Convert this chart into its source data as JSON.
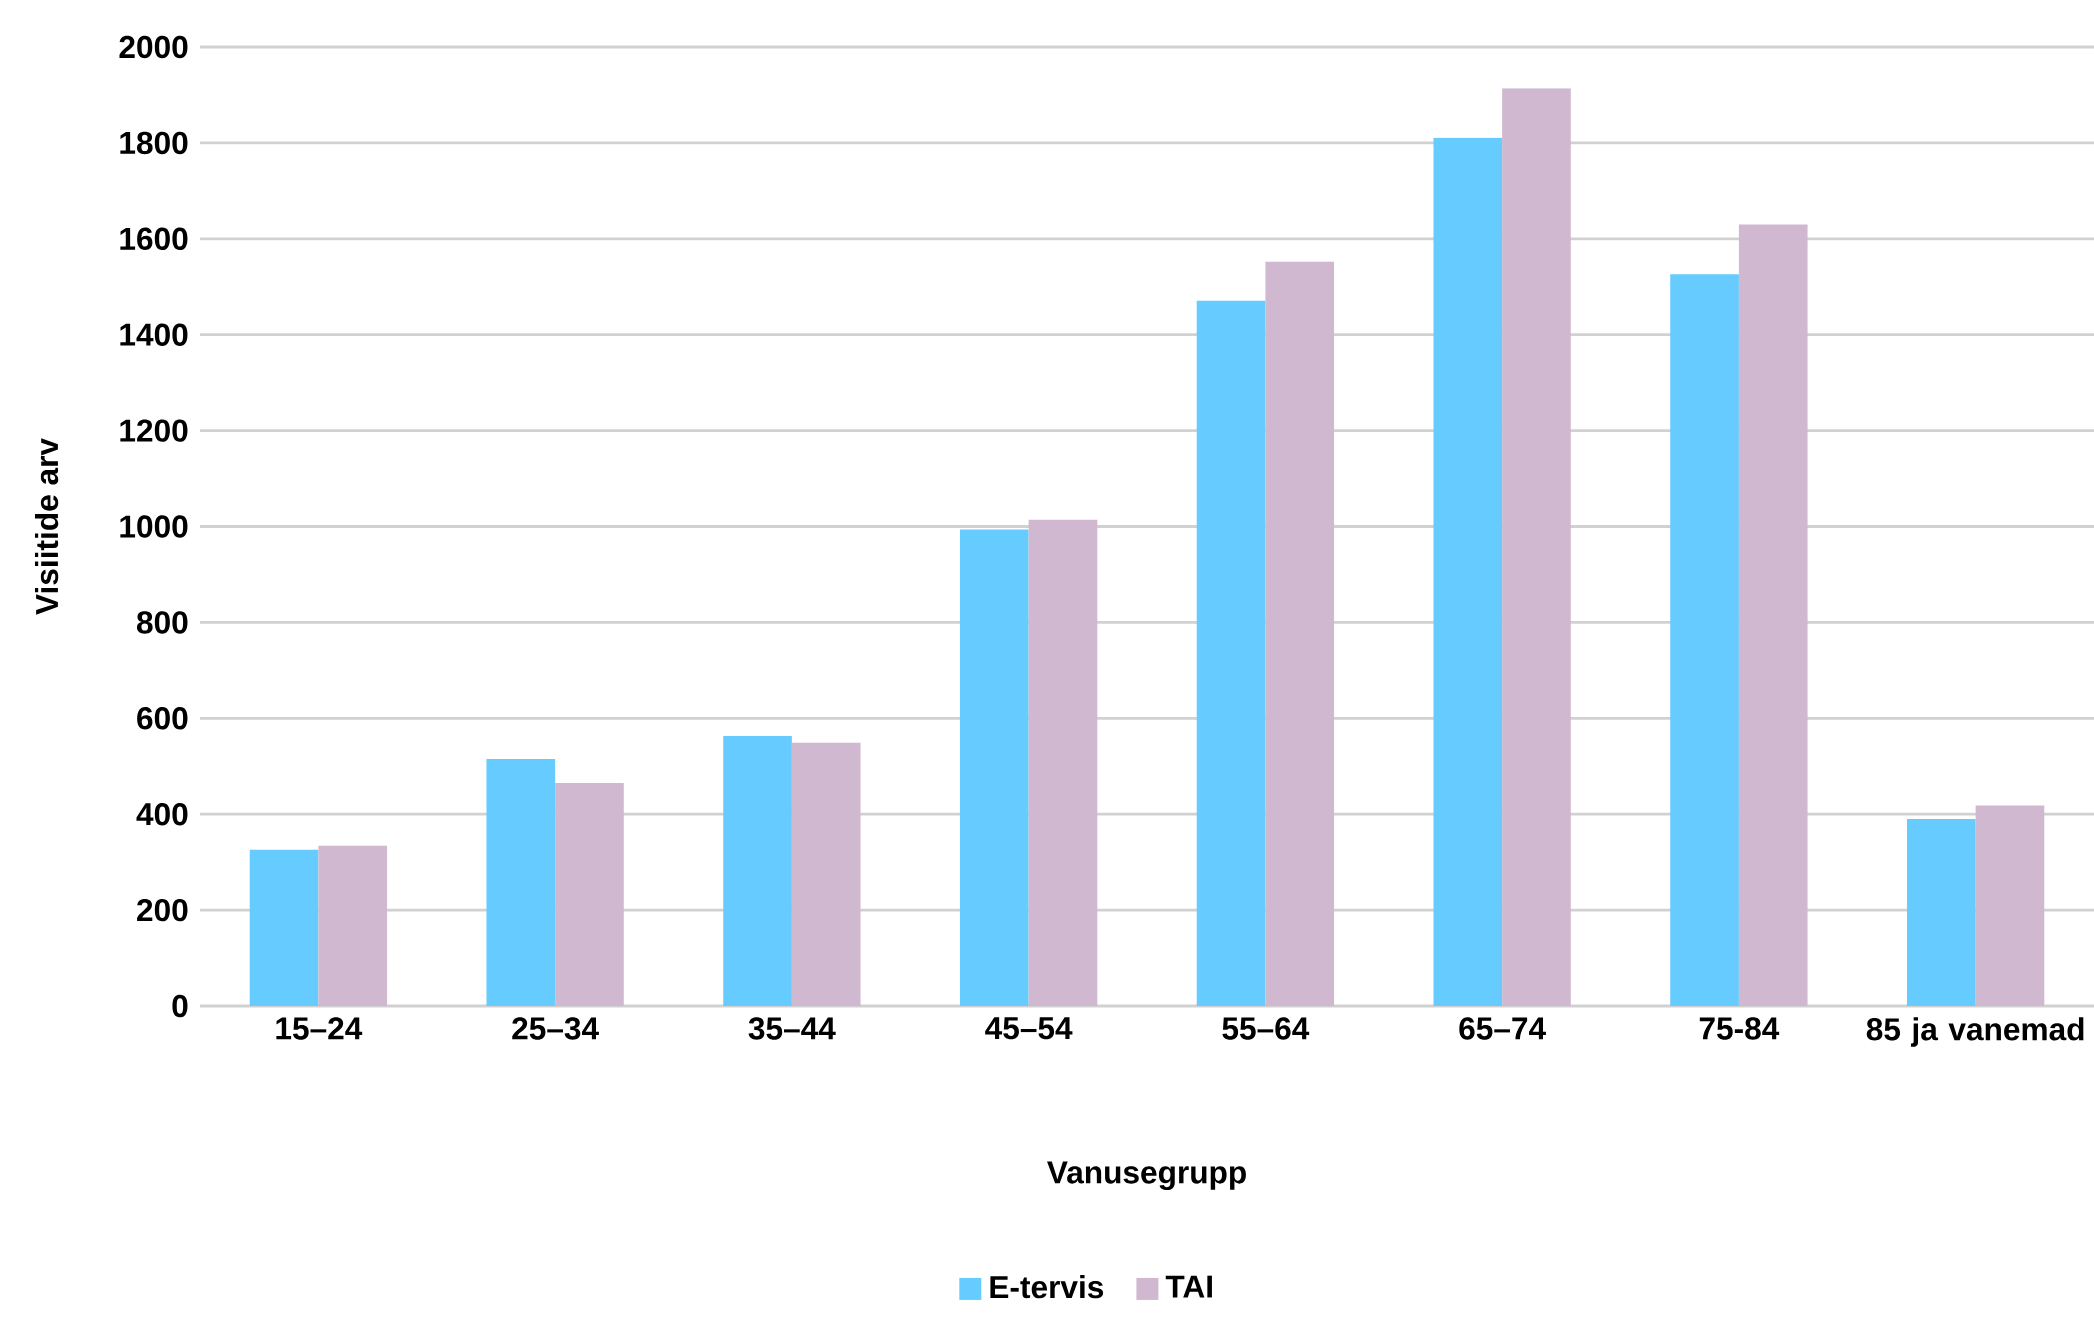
{
  "chart_data": {
    "type": "bar",
    "xlabel": "Vanusegrupp",
    "ylabel": "Visiitide arv",
    "categories": [
      "15–24",
      "25–34",
      "35–44",
      "45–54",
      "55–64",
      "65–74",
      "75-84",
      "85 ja vanemad"
    ],
    "series": [
      {
        "name": "E-tervis",
        "color": "#66ccff",
        "values": [
          326,
          515,
          563,
          994,
          1471,
          1811,
          1526,
          390
        ]
      },
      {
        "name": "TAI",
        "color": "#cfb8d0",
        "values": [
          334,
          465,
          549,
          1014,
          1552,
          1914,
          1630,
          418
        ]
      }
    ],
    "ylim": [
      0,
      2000
    ],
    "yticks": [
      0,
      200,
      400,
      600,
      800,
      1000,
      1200,
      1400,
      1600,
      1800,
      2000
    ],
    "grid": "y",
    "legend": "bottom"
  }
}
